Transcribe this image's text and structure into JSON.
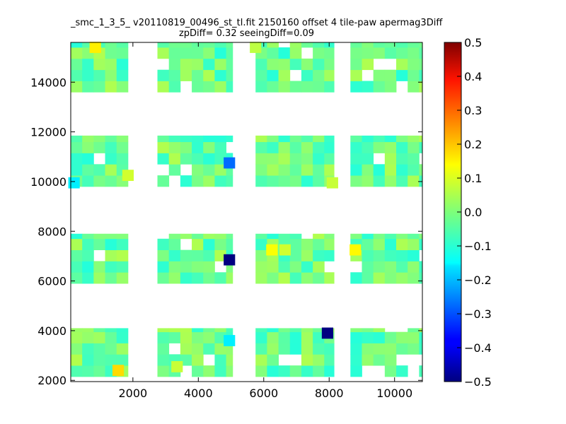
{
  "chart_data": {
    "type": "heatmap",
    "title": "_smc_1_3_5_ v20110819_00496_st_tl.fit 2150160 offset 4 tile-paw apermag3Diff",
    "subtitle": "zpDiff= 0.32 seeingDiff=0.09",
    "xlabel": "",
    "ylabel": "",
    "xlim": [
      100,
      10850
    ],
    "ylim": [
      1950,
      15600
    ],
    "xticks": [
      2000,
      4000,
      6000,
      8000,
      10000
    ],
    "yticks": [
      2000,
      4000,
      6000,
      8000,
      10000,
      12000,
      14000
    ],
    "colorbar": {
      "range": [
        -0.5,
        0.5
      ],
      "ticks": [
        "0.5",
        "0.4",
        "0.3",
        "0.2",
        "0.1",
        "0.0",
        "−0.1",
        "−0.2",
        "−0.3",
        "−0.4",
        "−0.5"
      ],
      "colormap": "jet"
    },
    "cell_size": [
      350,
      450
    ],
    "blocks": [
      {
        "x0": 100,
        "x1": 1850,
        "y0": 2150,
        "y1": 4100
      },
      {
        "x0": 100,
        "x1": 1850,
        "y0": 5900,
        "y1": 7900
      },
      {
        "x0": 100,
        "x1": 1850,
        "y0": 9800,
        "y1": 11850
      },
      {
        "x0": 100,
        "x1": 1850,
        "y0": 13600,
        "y1": 15600
      },
      {
        "x0": 2750,
        "x1": 5050,
        "y0": 2150,
        "y1": 4100
      },
      {
        "x0": 2750,
        "x1": 5050,
        "y0": 5900,
        "y1": 7900
      },
      {
        "x0": 2750,
        "x1": 5050,
        "y0": 9800,
        "y1": 11850
      },
      {
        "x0": 2750,
        "x1": 5050,
        "y0": 13600,
        "y1": 15600
      },
      {
        "x0": 5750,
        "x1": 8150,
        "y0": 2150,
        "y1": 4100
      },
      {
        "x0": 5750,
        "x1": 8150,
        "y0": 5900,
        "y1": 7900
      },
      {
        "x0": 5750,
        "x1": 8150,
        "y0": 9800,
        "y1": 11850
      },
      {
        "x0": 5750,
        "x1": 8150,
        "y0": 13600,
        "y1": 15600
      },
      {
        "x0": 8650,
        "x1": 10850,
        "y0": 2150,
        "y1": 4100
      },
      {
        "x0": 8650,
        "x1": 10850,
        "y0": 5900,
        "y1": 7900
      },
      {
        "x0": 8650,
        "x1": 10850,
        "y0": 9800,
        "y1": 11850
      },
      {
        "x0": 8650,
        "x1": 10850,
        "y0": 13600,
        "y1": 15600
      }
    ],
    "typical_value_range": [
      -0.09,
      0.05
    ],
    "outliers": [
      {
        "x": 1550,
        "y": 2400,
        "value": 0.16
      },
      {
        "x": 3350,
        "y": 2550,
        "value": 0.07
      },
      {
        "x": 4950,
        "y": 3600,
        "value": -0.14
      },
      {
        "x": 7950,
        "y": 3900,
        "value": -0.5
      },
      {
        "x": 4950,
        "y": 6850,
        "value": -0.5
      },
      {
        "x": 6250,
        "y": 7250,
        "value": 0.12
      },
      {
        "x": 6650,
        "y": 7250,
        "value": 0.08
      },
      {
        "x": 8800,
        "y": 7250,
        "value": 0.13
      },
      {
        "x": 4950,
        "y": 10750,
        "value": -0.27
      },
      {
        "x": 200,
        "y": 9950,
        "value": -0.14
      },
      {
        "x": 1850,
        "y": 10250,
        "value": 0.08
      },
      {
        "x": 8100,
        "y": 9950,
        "value": 0.07
      },
      {
        "x": 850,
        "y": 15400,
        "value": 0.14
      },
      {
        "x": 5750,
        "y": 15400,
        "value": 0.06
      }
    ]
  }
}
